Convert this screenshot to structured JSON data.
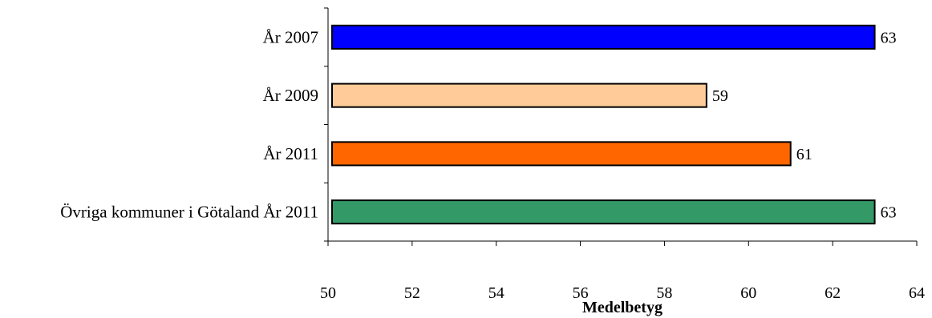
{
  "chart_data": {
    "type": "bar",
    "orientation": "horizontal",
    "categories": [
      "År 2007",
      "År 2009",
      "År 2011",
      "Övriga kommuner i Götaland År 2011"
    ],
    "values": [
      63,
      59,
      61,
      63
    ],
    "data_labels": [
      "63",
      "59",
      "61",
      "63"
    ],
    "colors": [
      "#0000ff",
      "#ffcc99",
      "#ff6600",
      "#339966"
    ],
    "xlabel": "Medelbetyg",
    "ylabel": "",
    "title": "",
    "xlim": [
      50,
      64
    ],
    "xticks": [
      50,
      52,
      54,
      56,
      58,
      60,
      62,
      64
    ],
    "xtick_labels": [
      "50",
      "52",
      "54",
      "56",
      "58",
      "60",
      "62",
      "64"
    ],
    "grid": false,
    "legend": "none"
  }
}
